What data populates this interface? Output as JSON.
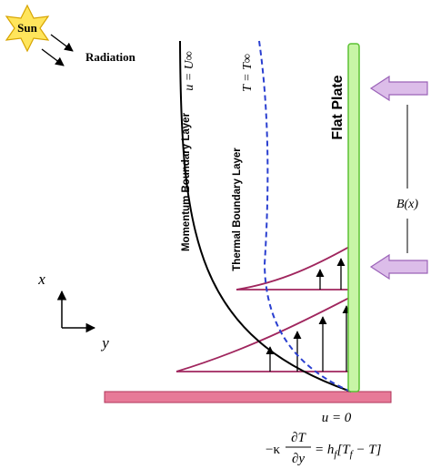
{
  "sun": {
    "label": "Sun"
  },
  "radiation": {
    "label": "Radiation"
  },
  "free_stream": {
    "velocity": "u = U∞",
    "temperature": "T = T∞"
  },
  "layers": {
    "momentum": "Momentum Boundary Layer",
    "thermal": "Thermal Boundary Layer"
  },
  "plate": {
    "label": "Flat Plate"
  },
  "field": {
    "label": "B(x)"
  },
  "axes": {
    "x": "x",
    "y": "y"
  },
  "wall": {
    "condition": "u = 0",
    "equation": {
      "lhs": "−κ",
      "numerator": "∂T",
      "denominator": "∂y",
      "rhs_parts": [
        "= h",
        "f",
        "[T",
        "f",
        " − T]"
      ]
    }
  }
}
